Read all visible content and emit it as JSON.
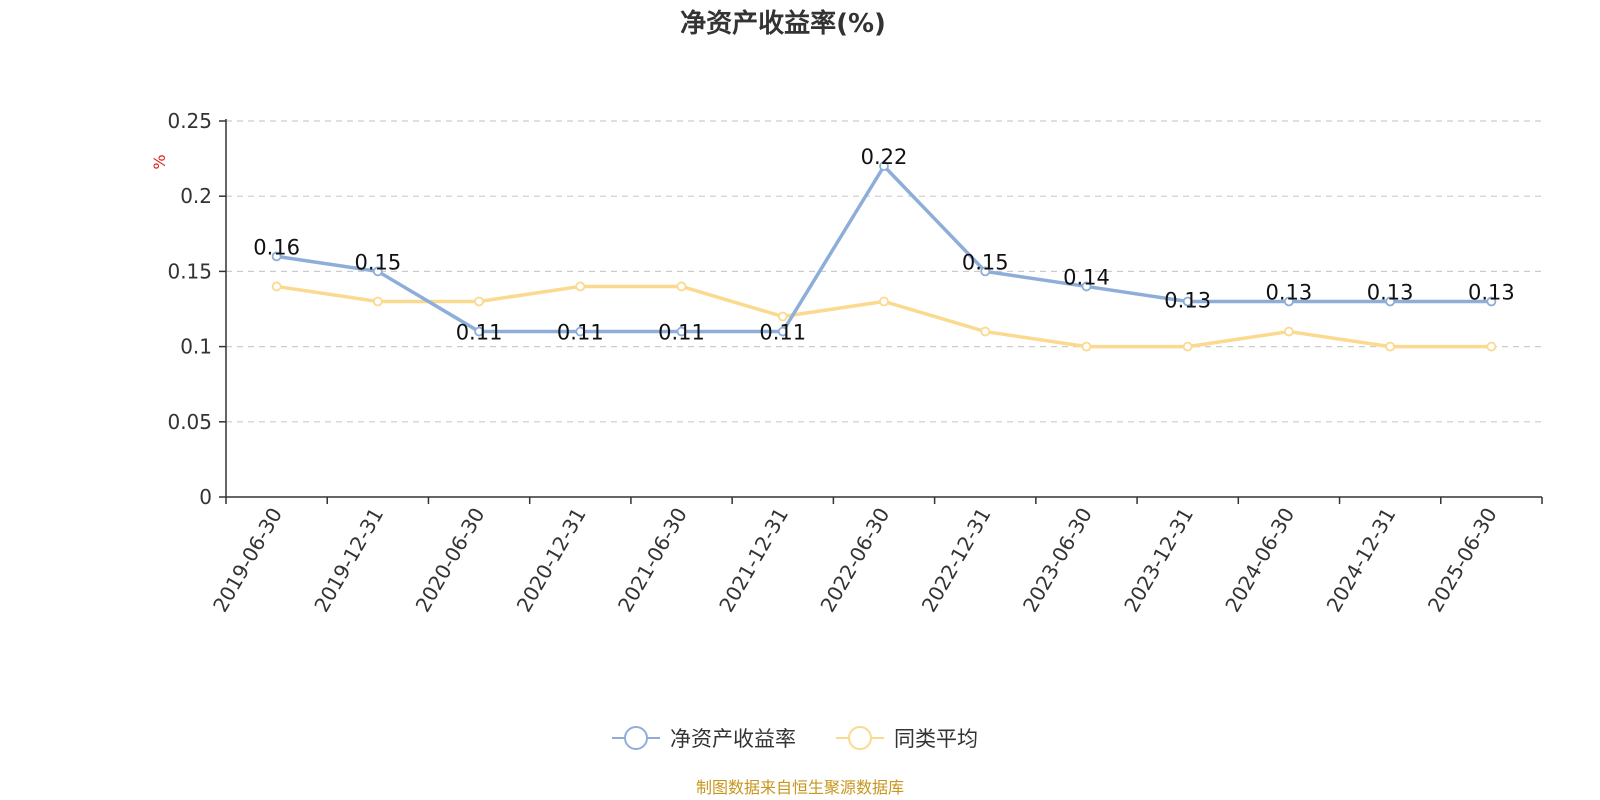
{
  "chart_data": {
    "type": "line",
    "title": "净资产收益率(%)",
    "ylabel": "%",
    "ylim": [
      0,
      0.25
    ],
    "yticks": [
      "0",
      "0.05",
      "0.1",
      "0.15",
      "0.2",
      "0.25"
    ],
    "grid": true,
    "categories": [
      "2019-06-30",
      "2019-12-31",
      "2020-06-30",
      "2020-12-31",
      "2021-06-30",
      "2021-12-31",
      "2022-06-30",
      "2022-12-31",
      "2023-06-30",
      "2023-12-31",
      "2024-06-30",
      "2024-12-31",
      "2025-06-30"
    ],
    "series": [
      {
        "name": "净资产收益率",
        "color": "#8eaed8",
        "values": [
          0.16,
          0.15,
          0.11,
          0.11,
          0.11,
          0.11,
          0.22,
          0.15,
          0.14,
          0.13,
          0.13,
          0.13,
          0.13
        ],
        "labels": [
          "0.16",
          "0.15",
          "0.11",
          "0.11",
          "0.11",
          "0.11",
          "0.22",
          "0.15",
          "0.14",
          "0.13",
          "0.13",
          "0.13",
          "0.13"
        ]
      },
      {
        "name": "同类平均",
        "color": "#fbd98e",
        "values": [
          0.14,
          0.13,
          0.13,
          0.14,
          0.14,
          0.12,
          0.13,
          0.11,
          0.1,
          0.1,
          0.11,
          0.1,
          0.1
        ]
      }
    ],
    "legend_position": "bottom-center",
    "source": "制图数据来自恒生聚源数据库"
  }
}
